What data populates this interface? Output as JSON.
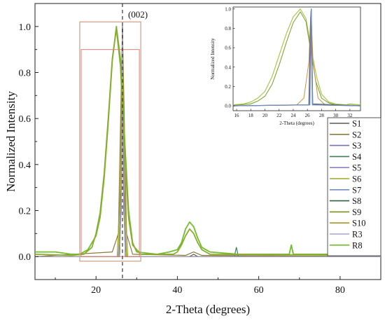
{
  "chart_data": [
    {
      "type": "line",
      "xlabel": "2-Theta (degrees)",
      "ylabel": "Normalized Intensity",
      "xlim": [
        5,
        90
      ],
      "ylim": [
        -0.1,
        1.1
      ],
      "xticks": [
        20,
        40,
        60,
        80
      ],
      "yticks": [
        0.0,
        0.2,
        0.4,
        0.6,
        0.8,
        1.0
      ],
      "ytick_labels": [
        "0.0",
        "0.2",
        "0.4",
        "0.6",
        "0.8",
        "1.0"
      ],
      "grid": false,
      "legend_position": "right",
      "annotation": "(002)",
      "reference_line_x": 26.5,
      "highlight_box_x": [
        16,
        31
      ],
      "series": [
        {
          "name": "S1",
          "color": "#5a5a5a",
          "points": [
            [
              5,
              0
            ],
            [
              25.5,
              0
            ],
            [
              26.2,
              0.2
            ],
            [
              26.5,
              1.0
            ],
            [
              26.8,
              0.2
            ],
            [
              27.5,
              0
            ],
            [
              43,
              0
            ],
            [
              44,
              0.01
            ],
            [
              45,
              0
            ],
            [
              90,
              0
            ]
          ]
        },
        {
          "name": "S2",
          "color": "#8c7a3a",
          "points": [
            [
              5,
              0
            ],
            [
              24,
              0.02
            ],
            [
              25.5,
              0.1
            ],
            [
              26.5,
              1.0
            ],
            [
              27.5,
              0.1
            ],
            [
              29,
              0.01
            ],
            [
              42,
              0.005
            ],
            [
              44,
              0.02
            ],
            [
              46,
              0.005
            ],
            [
              90,
              0
            ]
          ]
        },
        {
          "name": "S3",
          "color": "#7b6fb0",
          "points": [
            [
              5,
              0
            ],
            [
              25.8,
              0
            ],
            [
              26.3,
              0.5
            ],
            [
              26.5,
              1.0
            ],
            [
              26.7,
              0.5
            ],
            [
              27.2,
              0
            ],
            [
              90,
              0
            ]
          ]
        },
        {
          "name": "S4",
          "color": "#3f7f5a",
          "points": [
            [
              5,
              0
            ],
            [
              25.8,
              0
            ],
            [
              26.3,
              0.4
            ],
            [
              26.5,
              1.0
            ],
            [
              26.7,
              0.4
            ],
            [
              27.2,
              0
            ],
            [
              54,
              0
            ],
            [
              54.5,
              0.04
            ],
            [
              55,
              0
            ],
            [
              90,
              0
            ]
          ]
        },
        {
          "name": "S5",
          "color": "#8a82c4",
          "points": [
            [
              5,
              0
            ],
            [
              25.8,
              0
            ],
            [
              26.3,
              0.4
            ],
            [
              26.5,
              1.0
            ],
            [
              26.7,
              0.4
            ],
            [
              27.2,
              0
            ],
            [
              90,
              0
            ]
          ]
        },
        {
          "name": "S6",
          "color": "#9aaa28",
          "points": [
            [
              5,
              0
            ],
            [
              25.5,
              0
            ],
            [
              26.2,
              0.3
            ],
            [
              26.5,
              1.0
            ],
            [
              26.8,
              0.3
            ],
            [
              27.5,
              0
            ],
            [
              90,
              0
            ]
          ]
        },
        {
          "name": "S7",
          "color": "#6f8fbf",
          "points": [
            [
              5,
              0
            ],
            [
              25.8,
              0
            ],
            [
              26.3,
              0.5
            ],
            [
              26.5,
              1.0
            ],
            [
              26.7,
              0.5
            ],
            [
              27.2,
              0
            ],
            [
              90,
              0
            ]
          ]
        },
        {
          "name": "S8",
          "color": "#2f5f44",
          "points": [
            [
              5,
              0
            ],
            [
              25.8,
              0
            ],
            [
              26.3,
              0.4
            ],
            [
              26.5,
              1.0
            ],
            [
              26.7,
              0.4
            ],
            [
              27.2,
              0
            ],
            [
              90,
              0
            ]
          ]
        },
        {
          "name": "S9",
          "color": "#7f8f1f",
          "points": [
            [
              5,
              0
            ],
            [
              25.8,
              0
            ],
            [
              26.3,
              0.4
            ],
            [
              26.5,
              1.0
            ],
            [
              26.7,
              0.4
            ],
            [
              27.2,
              0
            ],
            [
              90,
              0
            ]
          ]
        },
        {
          "name": "S10",
          "color": "#a39a2a",
          "points": [
            [
              5,
              0
            ],
            [
              25.2,
              0
            ],
            [
              26.0,
              0.3
            ],
            [
              26.5,
              1.0
            ],
            [
              27.0,
              0.3
            ],
            [
              27.8,
              0
            ],
            [
              90,
              0
            ]
          ]
        },
        {
          "name": "R3",
          "color": "#a89fd8",
          "points": [
            [
              5,
              0
            ],
            [
              25.8,
              0
            ],
            [
              26.3,
              0.3
            ],
            [
              26.5,
              1.0
            ],
            [
              26.7,
              0.3
            ],
            [
              27.2,
              0
            ],
            [
              90,
              0
            ]
          ]
        },
        {
          "name": "R8",
          "color": "#6fbf2a",
          "points": [
            [
              5,
              0.02
            ],
            [
              10,
              0.02
            ],
            [
              14,
              0.01
            ],
            [
              16,
              0.01
            ],
            [
              18,
              0.03
            ],
            [
              20,
              0.09
            ],
            [
              21,
              0.17
            ],
            [
              22,
              0.34
            ],
            [
              23,
              0.58
            ],
            [
              24,
              0.85
            ],
            [
              25,
              1.0
            ],
            [
              26,
              0.86
            ],
            [
              27,
              0.52
            ],
            [
              28,
              0.2
            ],
            [
              29,
              0.06
            ],
            [
              30,
              0.02
            ],
            [
              35,
              0.01
            ],
            [
              38,
              0.02
            ],
            [
              40,
              0.03
            ],
            [
              41,
              0.06
            ],
            [
              42,
              0.12
            ],
            [
              43,
              0.15
            ],
            [
              44,
              0.13
            ],
            [
              45,
              0.08
            ],
            [
              46,
              0.04
            ],
            [
              48,
              0.02
            ],
            [
              55,
              0.01
            ],
            [
              67.5,
              0.01
            ],
            [
              68,
              0.05
            ],
            [
              68.5,
              0.01
            ],
            [
              77,
              0.01
            ],
            [
              90,
              0.01
            ]
          ]
        },
        {
          "name": "",
          "color": "#8dab2e",
          "points": [
            [
              5,
              0.01
            ],
            [
              14,
              0.005
            ],
            [
              17,
              0.01
            ],
            [
              19,
              0.04
            ],
            [
              20,
              0.1
            ],
            [
              21,
              0.19
            ],
            [
              22,
              0.36
            ],
            [
              23,
              0.6
            ],
            [
              24,
              0.86
            ],
            [
              25,
              0.99
            ],
            [
              26,
              0.83
            ],
            [
              27,
              0.47
            ],
            [
              28,
              0.17
            ],
            [
              29,
              0.05
            ],
            [
              31,
              0.01
            ],
            [
              39,
              0.01
            ],
            [
              40,
              0.02
            ],
            [
              41,
              0.05
            ],
            [
              42,
              0.09
            ],
            [
              43,
              0.12
            ],
            [
              44,
              0.1
            ],
            [
              45,
              0.06
            ],
            [
              46,
              0.03
            ],
            [
              48,
              0.01
            ],
            [
              90,
              0.005
            ]
          ]
        }
      ]
    },
    {
      "type": "line",
      "xlabel": "2-Theta (degrees)",
      "ylabel": "Normalized Intensity",
      "xlim": [
        15.5,
        33.5
      ],
      "ylim": [
        -0.05,
        1.02
      ],
      "xticks": [
        16,
        18,
        20,
        22,
        24,
        26,
        28,
        30,
        32
      ],
      "xtick_labels": [
        "16",
        "18",
        "20",
        "22",
        "24",
        "26",
        "28",
        "30",
        "32"
      ],
      "yticks": [
        0.0,
        0.2,
        0.4,
        0.6,
        0.8,
        1.0
      ],
      "ytick_labels": [
        "0.0",
        "0.2",
        "0.4",
        "0.6",
        "0.8",
        "1.0"
      ],
      "grid": false,
      "series": [
        {
          "name": "R8",
          "color": "#a4c43c",
          "points": [
            [
              15.5,
              0.01
            ],
            [
              17,
              0.02
            ],
            [
              18,
              0.04
            ],
            [
              19,
              0.08
            ],
            [
              20,
              0.15
            ],
            [
              21,
              0.3
            ],
            [
              22,
              0.52
            ],
            [
              23,
              0.74
            ],
            [
              24,
              0.92
            ],
            [
              25,
              1.0
            ],
            [
              25.8,
              0.9
            ],
            [
              26.5,
              0.6
            ],
            [
              27.3,
              0.3
            ],
            [
              28,
              0.12
            ],
            [
              29,
              0.04
            ],
            [
              30,
              0.02
            ],
            [
              31.5,
              0.01
            ],
            [
              32,
              0.02
            ],
            [
              33.5,
              0.01
            ]
          ]
        },
        {
          "name": "",
          "color": "#7fa63a",
          "points": [
            [
              15.5,
              0.005
            ],
            [
              18,
              0.02
            ],
            [
              19,
              0.05
            ],
            [
              20,
              0.1
            ],
            [
              21,
              0.22
            ],
            [
              22,
              0.42
            ],
            [
              23,
              0.65
            ],
            [
              24,
              0.86
            ],
            [
              25,
              0.97
            ],
            [
              25.8,
              0.87
            ],
            [
              26.5,
              0.55
            ],
            [
              27.2,
              0.25
            ],
            [
              28,
              0.08
            ],
            [
              29,
              0.03
            ],
            [
              30,
              0.01
            ],
            [
              33.5,
              0.005
            ]
          ]
        },
        {
          "name": "S2",
          "color": "#c9a050",
          "points": [
            [
              15.5,
              0
            ],
            [
              24.5,
              0.01
            ],
            [
              25.5,
              0.08
            ],
            [
              26.2,
              0.45
            ],
            [
              26.5,
              0.98
            ],
            [
              26.8,
              0.45
            ],
            [
              27.5,
              0.08
            ],
            [
              28.5,
              0.01
            ],
            [
              33.5,
              0
            ]
          ]
        },
        {
          "name": "S1",
          "color": "#5a5a5a",
          "points": [
            [
              15.5,
              0
            ],
            [
              26.2,
              0.01
            ],
            [
              26.45,
              0.9
            ],
            [
              26.55,
              1.0
            ],
            [
              26.75,
              0.02
            ],
            [
              33.5,
              0
            ]
          ]
        },
        {
          "name": "S3",
          "color": "#7b6fb0",
          "points": [
            [
              15.5,
              0
            ],
            [
              26.3,
              0.01
            ],
            [
              26.5,
              0.95
            ],
            [
              26.7,
              0.01
            ],
            [
              33.5,
              0
            ]
          ]
        },
        {
          "name": "S7",
          "color": "#6f8fbf",
          "points": [
            [
              15.5,
              0
            ],
            [
              26.35,
              0.01
            ],
            [
              26.55,
              1.0
            ],
            [
              26.75,
              0.01
            ],
            [
              33.5,
              0
            ]
          ]
        }
      ]
    }
  ],
  "legend": {
    "entries": [
      "S1",
      "S2",
      "S3",
      "S4",
      "S5",
      "S6",
      "S7",
      "S8",
      "S9",
      "S10",
      "R3",
      "R8"
    ]
  },
  "colors": {
    "axis": "#222222",
    "highlight_box": "#d4a58a",
    "highlight_box_inner": "#e27b7b",
    "reference_line": "#333333"
  }
}
